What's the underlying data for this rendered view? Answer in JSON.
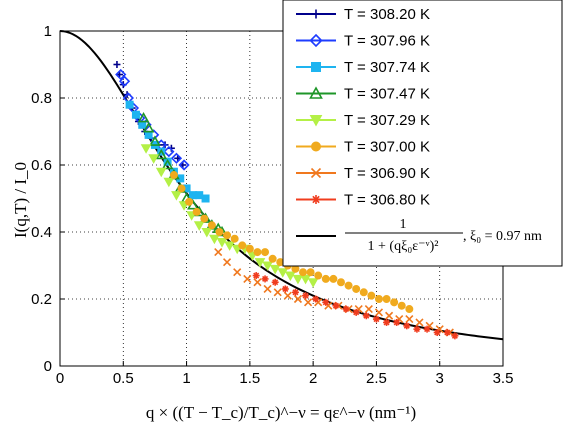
{
  "chart_data": {
    "type": "scatter",
    "title": "",
    "xlabel": "q × ((T − T_c)/T_c)^−ν = qε^−ν (nm⁻¹)",
    "ylabel": "I(q,T) / I_0",
    "xlim": [
      0,
      3.5
    ],
    "ylim": [
      0,
      1
    ],
    "x_ticks": [
      "0",
      "0.5",
      "1",
      "1.5",
      "2",
      "2.5",
      "3",
      "3.5"
    ],
    "y_ticks": [
      "0",
      "0.2",
      "0.4",
      "0.6",
      "0.8",
      "1"
    ],
    "grid": true,
    "legend_position": "top-right",
    "series": [
      {
        "name": "T = 308.20 K",
        "color": "#00008b",
        "marker": "plus",
        "points": [
          [
            0.45,
            0.9
          ],
          [
            0.47,
            0.87
          ],
          [
            0.5,
            0.84
          ],
          [
            0.53,
            0.81
          ],
          [
            0.57,
            0.77
          ],
          [
            0.62,
            0.73
          ],
          [
            0.67,
            0.7
          ],
          [
            0.72,
            0.68
          ],
          [
            0.78,
            0.66
          ],
          [
            0.83,
            0.66
          ],
          [
            0.88,
            0.65
          ],
          [
            0.93,
            0.62
          ],
          [
            0.97,
            0.6
          ]
        ]
      },
      {
        "name": "T = 307.96 K",
        "color": "#1e3cff",
        "marker": "diamond",
        "points": [
          [
            0.48,
            0.87
          ],
          [
            0.51,
            0.85
          ],
          [
            0.54,
            0.8
          ],
          [
            0.58,
            0.77
          ],
          [
            0.63,
            0.74
          ],
          [
            0.68,
            0.72
          ],
          [
            0.74,
            0.69
          ],
          [
            0.8,
            0.66
          ],
          [
            0.86,
            0.64
          ],
          [
            0.92,
            0.62
          ],
          [
            0.98,
            0.6
          ]
        ]
      },
      {
        "name": "T = 307.74 K",
        "color": "#1eb4f0",
        "marker": "square",
        "points": [
          [
            0.55,
            0.78
          ],
          [
            0.6,
            0.75
          ],
          [
            0.65,
            0.72
          ],
          [
            0.7,
            0.69
          ],
          [
            0.75,
            0.66
          ],
          [
            0.8,
            0.64
          ],
          [
            0.85,
            0.61
          ],
          [
            0.9,
            0.58
          ],
          [
            0.95,
            0.56
          ],
          [
            1.0,
            0.53
          ],
          [
            1.05,
            0.51
          ],
          [
            1.1,
            0.51
          ],
          [
            1.15,
            0.5
          ]
        ]
      },
      {
        "name": "T = 307.47 K",
        "color": "#1e9628",
        "marker": "triangle-up",
        "points": [
          [
            0.66,
            0.74
          ],
          [
            0.7,
            0.71
          ],
          [
            0.75,
            0.67
          ],
          [
            0.8,
            0.63
          ],
          [
            0.85,
            0.6
          ],
          [
            0.9,
            0.57
          ],
          [
            0.95,
            0.53
          ],
          [
            1.0,
            0.5
          ],
          [
            1.05,
            0.48
          ],
          [
            1.1,
            0.46
          ],
          [
            1.15,
            0.44
          ],
          [
            1.2,
            0.42
          ],
          [
            1.25,
            0.41
          ],
          [
            1.28,
            0.4
          ]
        ]
      },
      {
        "name": "T = 307.29 K",
        "color": "#b4f046",
        "marker": "triangle-down",
        "points": [
          [
            0.68,
            0.65
          ],
          [
            0.74,
            0.62
          ],
          [
            0.8,
            0.58
          ],
          [
            0.86,
            0.55
          ],
          [
            0.92,
            0.51
          ],
          [
            0.98,
            0.48
          ],
          [
            1.04,
            0.45
          ],
          [
            1.1,
            0.42
          ],
          [
            1.16,
            0.4
          ],
          [
            1.22,
            0.38
          ],
          [
            1.28,
            0.37
          ],
          [
            1.34,
            0.36
          ],
          [
            1.4,
            0.35
          ],
          [
            1.46,
            0.35
          ],
          [
            1.52,
            0.33
          ],
          [
            1.58,
            0.31
          ],
          [
            1.64,
            0.3
          ],
          [
            1.7,
            0.29
          ],
          [
            1.76,
            0.28
          ],
          [
            1.82,
            0.27
          ],
          [
            1.88,
            0.26
          ],
          [
            1.94,
            0.26
          ],
          [
            2.0,
            0.25
          ]
        ]
      },
      {
        "name": "T = 307.00 K",
        "color": "#f0aa1e",
        "marker": "circle",
        "points": [
          [
            0.9,
            0.57
          ],
          [
            0.96,
            0.53
          ],
          [
            1.02,
            0.49
          ],
          [
            1.08,
            0.46
          ],
          [
            1.14,
            0.44
          ],
          [
            1.2,
            0.42
          ],
          [
            1.26,
            0.4
          ],
          [
            1.32,
            0.39
          ],
          [
            1.38,
            0.38
          ],
          [
            1.44,
            0.36
          ],
          [
            1.5,
            0.35
          ],
          [
            1.56,
            0.34
          ],
          [
            1.62,
            0.34
          ],
          [
            1.68,
            0.32
          ],
          [
            1.74,
            0.31
          ],
          [
            1.8,
            0.3
          ],
          [
            1.86,
            0.29
          ],
          [
            1.92,
            0.28
          ],
          [
            1.98,
            0.28
          ],
          [
            2.04,
            0.27
          ],
          [
            2.1,
            0.26
          ],
          [
            2.16,
            0.26
          ],
          [
            2.22,
            0.25
          ],
          [
            2.28,
            0.24
          ],
          [
            2.34,
            0.23
          ],
          [
            2.4,
            0.22
          ],
          [
            2.46,
            0.21
          ],
          [
            2.52,
            0.2
          ],
          [
            2.58,
            0.2
          ],
          [
            2.64,
            0.19
          ],
          [
            2.7,
            0.18
          ],
          [
            2.76,
            0.17
          ]
        ]
      },
      {
        "name": "T = 306.90 K",
        "color": "#f0781e",
        "marker": "x",
        "points": [
          [
            1.25,
            0.34
          ],
          [
            1.32,
            0.31
          ],
          [
            1.4,
            0.28
          ],
          [
            1.48,
            0.26
          ],
          [
            1.56,
            0.25
          ],
          [
            1.64,
            0.23
          ],
          [
            1.72,
            0.22
          ],
          [
            1.8,
            0.21
          ],
          [
            1.88,
            0.2
          ],
          [
            1.96,
            0.19
          ],
          [
            2.04,
            0.19
          ],
          [
            2.12,
            0.18
          ],
          [
            2.2,
            0.18
          ],
          [
            2.28,
            0.17
          ],
          [
            2.36,
            0.17
          ],
          [
            2.44,
            0.17
          ],
          [
            2.52,
            0.16
          ],
          [
            2.6,
            0.15
          ],
          [
            2.68,
            0.14
          ],
          [
            2.76,
            0.14
          ],
          [
            2.84,
            0.13
          ],
          [
            2.92,
            0.12
          ],
          [
            3.0,
            0.11
          ],
          [
            3.08,
            0.1
          ]
        ]
      },
      {
        "name": "T = 306.80 K",
        "color": "#f03c1e",
        "marker": "star",
        "points": [
          [
            1.55,
            0.27
          ],
          [
            1.62,
            0.26
          ],
          [
            1.7,
            0.25
          ],
          [
            1.78,
            0.23
          ],
          [
            1.86,
            0.22
          ],
          [
            1.94,
            0.21
          ],
          [
            2.02,
            0.2
          ],
          [
            2.1,
            0.19
          ],
          [
            2.18,
            0.18
          ],
          [
            2.26,
            0.17
          ],
          [
            2.34,
            0.16
          ],
          [
            2.42,
            0.15
          ],
          [
            2.5,
            0.14
          ],
          [
            2.58,
            0.13
          ],
          [
            2.66,
            0.13
          ],
          [
            2.74,
            0.12
          ],
          [
            2.82,
            0.11
          ],
          [
            2.9,
            0.11
          ],
          [
            2.98,
            0.1
          ],
          [
            3.06,
            0.1
          ],
          [
            3.12,
            0.09
          ]
        ]
      }
    ],
    "fit": {
      "label_numerator": "1",
      "label_denominator": "1 + (qξ₀ε⁻ᵛ)²",
      "label_suffix": ", ξ₀ = 0.97 nm",
      "xi0": 0.97,
      "color": "#000000"
    }
  }
}
